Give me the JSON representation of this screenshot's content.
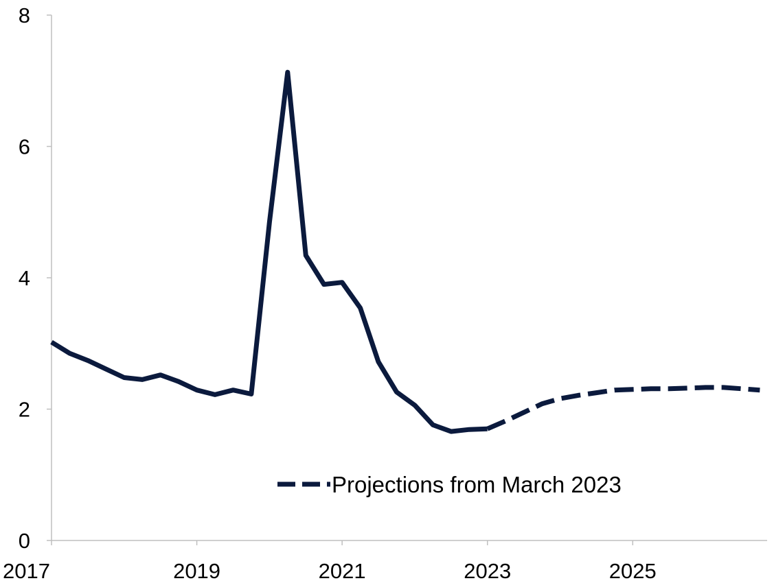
{
  "chart_data": {
    "type": "line",
    "title": "",
    "xlabel": "",
    "ylabel": "",
    "xlim": [
      2017.0,
      2026.85
    ],
    "ylim": [
      0,
      8
    ],
    "x_ticks": [
      2017,
      2019,
      2021,
      2023,
      2025
    ],
    "x_tick_labels": [
      "2017",
      "2019",
      "2021",
      "2023",
      "2025"
    ],
    "y_ticks": [
      0,
      2,
      4,
      6,
      8
    ],
    "y_tick_labels": [
      "0",
      "2",
      "4",
      "6",
      "8"
    ],
    "grid": false,
    "legend_position": "bottom-center",
    "series": [
      {
        "style": "solid",
        "color": "#0b1a3d",
        "points": [
          [
            2017.0,
            3.02
          ],
          [
            2017.25,
            2.85
          ],
          [
            2017.5,
            2.74
          ],
          [
            2017.75,
            2.61
          ],
          [
            2018.0,
            2.48
          ],
          [
            2018.25,
            2.45
          ],
          [
            2018.5,
            2.52
          ],
          [
            2018.75,
            2.42
          ],
          [
            2019.0,
            2.29
          ],
          [
            2019.25,
            2.22
          ],
          [
            2019.5,
            2.29
          ],
          [
            2019.75,
            2.23
          ],
          [
            2020.0,
            4.85
          ],
          [
            2020.25,
            7.13
          ],
          [
            2020.5,
            4.34
          ],
          [
            2020.75,
            3.9
          ],
          [
            2021.0,
            3.93
          ],
          [
            2021.25,
            3.54
          ],
          [
            2021.5,
            2.72
          ],
          [
            2021.75,
            2.26
          ],
          [
            2022.0,
            2.06
          ],
          [
            2022.25,
            1.76
          ],
          [
            2022.5,
            1.66
          ],
          [
            2022.75,
            1.69
          ],
          [
            2023.0,
            1.7
          ]
        ]
      },
      {
        "name": "Projections from March 2023",
        "style": "dashed",
        "color": "#0b1a3d",
        "points": [
          [
            2023.0,
            1.7
          ],
          [
            2023.25,
            1.82
          ],
          [
            2023.5,
            1.95
          ],
          [
            2023.75,
            2.08
          ],
          [
            2024.0,
            2.16
          ],
          [
            2024.25,
            2.21
          ],
          [
            2024.5,
            2.25
          ],
          [
            2024.75,
            2.29
          ],
          [
            2025.0,
            2.3
          ],
          [
            2025.25,
            2.31
          ],
          [
            2025.5,
            2.31
          ],
          [
            2025.75,
            2.32
          ],
          [
            2026.0,
            2.33
          ],
          [
            2026.25,
            2.33
          ],
          [
            2026.5,
            2.31
          ],
          [
            2026.75,
            2.29
          ]
        ]
      }
    ]
  },
  "legend": {
    "label": "Projections from March 2023"
  }
}
